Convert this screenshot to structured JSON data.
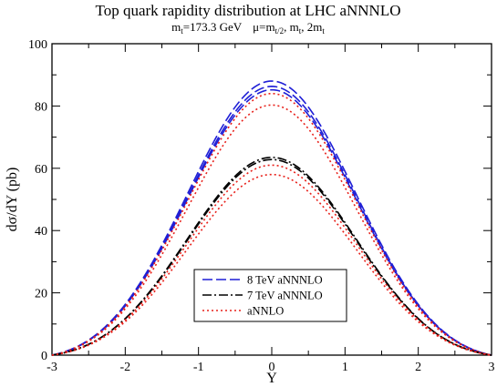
{
  "title_line1": "Top quark rapidity distribution at  LHC     aNNNLO",
  "subtitle": {
    "m_sym": "m",
    "m_sub": "t",
    "m_val": "=173.3 GeV",
    "mu_sym": "μ=m",
    "mu_sub": "t/2",
    "mu_mid": ", m",
    "mu_sub2": "t",
    "mu_end": ", 2m",
    "mu_sub3": "t"
  },
  "chart_data": {
    "type": "line",
    "xlabel": "Y",
    "ylabel": "dσ/dY (pb)",
    "xlim": [
      -3,
      3
    ],
    "ylim": [
      0,
      100
    ],
    "x_ticks": [
      -3,
      -2,
      -1,
      0,
      1,
      2,
      3
    ],
    "y_ticks": [
      0,
      20,
      40,
      60,
      80,
      100
    ],
    "grid": false,
    "legend_position": "bottom-center",
    "legend": [
      {
        "label": "8 TeV aNNNLO",
        "color": "#1f1fd6",
        "dash": "dashed"
      },
      {
        "label": "7 TeV aNNNLO",
        "color": "#000000",
        "dash": "dash-dot"
      },
      {
        "label": "aNNLO",
        "color": "#e8201a",
        "dash": "dotted"
      }
    ],
    "peak_shape": "gaussian-like, symmetric about Y=0, vanishing at |Y|=3",
    "series": [
      {
        "name": "8 TeV aNNNLO",
        "color": "#1f1fd6",
        "dash": "dashed",
        "peak": 88.0
      },
      {
        "name": "8 TeV aNNNLO",
        "color": "#1f1fd6",
        "dash": "dashed",
        "peak": 86.3
      },
      {
        "name": "8 TeV aNNNLO",
        "color": "#1f1fd6",
        "dash": "dashed",
        "peak": 85.2
      },
      {
        "name": "aNNLO",
        "color": "#e8201a",
        "dash": "dotted",
        "peak": 84.0
      },
      {
        "name": "aNNLO",
        "color": "#e8201a",
        "dash": "dotted",
        "peak": 80.3
      },
      {
        "name": "7 TeV aNNNLO",
        "color": "#000000",
        "dash": "dash-dot",
        "peak": 63.5
      },
      {
        "name": "7 TeV aNNNLO",
        "color": "#000000",
        "dash": "dash-dot",
        "peak": 62.8
      },
      {
        "name": "aNNLO",
        "color": "#e8201a",
        "dash": "dotted",
        "peak": 61.0
      },
      {
        "name": "aNNLO",
        "color": "#e8201a",
        "dash": "dotted",
        "peak": 58.0
      }
    ]
  }
}
